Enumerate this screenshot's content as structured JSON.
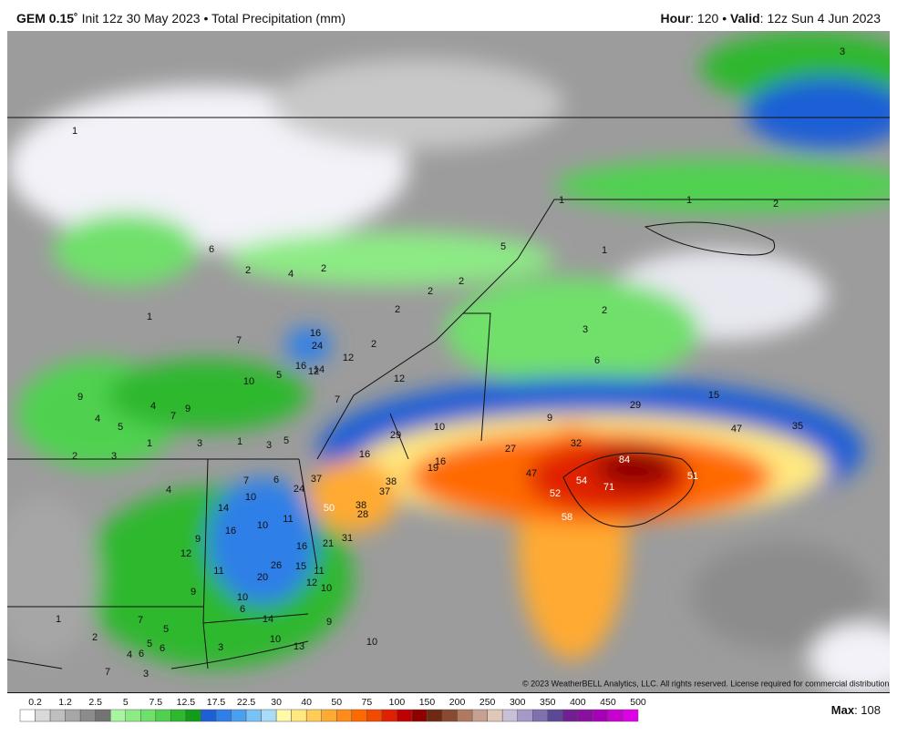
{
  "header": {
    "model": "GEM 0.15˚",
    "init": "Init 12z 30 May 2023",
    "separator": "•",
    "product": "Total Precipitation (mm)",
    "hour_label": "Hour",
    "hour_value": ": 120",
    "valid_label": "Valid",
    "valid_value": ": 12z Sun 4 Jun 2023"
  },
  "map": {
    "copyright": "© 2023 WeatherBELL Analytics, LLC. All rights reserved. License required for commercial distribution.",
    "labels": [
      "1",
      "6",
      "2",
      "4",
      "2",
      "1",
      "7",
      "16",
      "24",
      "12",
      "16",
      "14",
      "12",
      "10",
      "5",
      "12",
      "9",
      "4",
      "7",
      "9",
      "4",
      "5",
      "7",
      "10",
      "29",
      "1",
      "3",
      "3",
      "5",
      "1",
      "2",
      "3",
      "16",
      "16",
      "19",
      "7",
      "6",
      "4",
      "37",
      "24",
      "10",
      "38",
      "37",
      "14",
      "50",
      "38",
      "28",
      "11",
      "10",
      "16",
      "9",
      "31",
      "21",
      "12",
      "16",
      "15",
      "11",
      "26",
      "11",
      "20",
      "12",
      "10",
      "9",
      "10",
      "6",
      "14",
      "7",
      "5",
      "2",
      "1",
      "9",
      "10",
      "13",
      "6",
      "5",
      "6",
      "4",
      "3",
      "7",
      "3",
      "10",
      "1",
      "5",
      "2",
      "2",
      "2",
      "2",
      "1",
      "2",
      "3",
      "6",
      "9",
      "29",
      "15",
      "47",
      "35",
      "32",
      "27",
      "84",
      "47",
      "54",
      "71",
      "51",
      "52",
      "58",
      "1",
      "2",
      "3"
    ]
  },
  "legend": {
    "levels": [
      "0.2",
      "1.2",
      "2.5",
      "5",
      "7.5",
      "12.5",
      "17.5",
      "22.5",
      "30",
      "40",
      "50",
      "75",
      "100",
      "150",
      "200",
      "250",
      "300",
      "350",
      "400",
      "450",
      "500"
    ],
    "colors": [
      "#ffffff",
      "#d9d9d9",
      "#bfbfbf",
      "#a6a6a6",
      "#8c8c8c",
      "#737373",
      "#a8f5a0",
      "#8ceb84",
      "#6fe06a",
      "#4fd14f",
      "#2db82d",
      "#119c1a",
      "#1f5fd6",
      "#2f7fe8",
      "#4aa0f0",
      "#78c2f5",
      "#a8dcf8",
      "#fff9a8",
      "#ffe880",
      "#ffcc55",
      "#ffaa30",
      "#ff8c1a",
      "#ff6a00",
      "#f24a00",
      "#e02000",
      "#c00000",
      "#8f0000",
      "#6e2a10",
      "#8a4a30",
      "#b07a60",
      "#c8a090",
      "#e0c8b8",
      "#c8c0d8",
      "#a898c8",
      "#8070b0",
      "#5c4896",
      "#702090",
      "#8a10a0",
      "#a800b8",
      "#c800d0",
      "#e000e8"
    ],
    "max_label": "Max",
    "max_value": ": 108"
  }
}
